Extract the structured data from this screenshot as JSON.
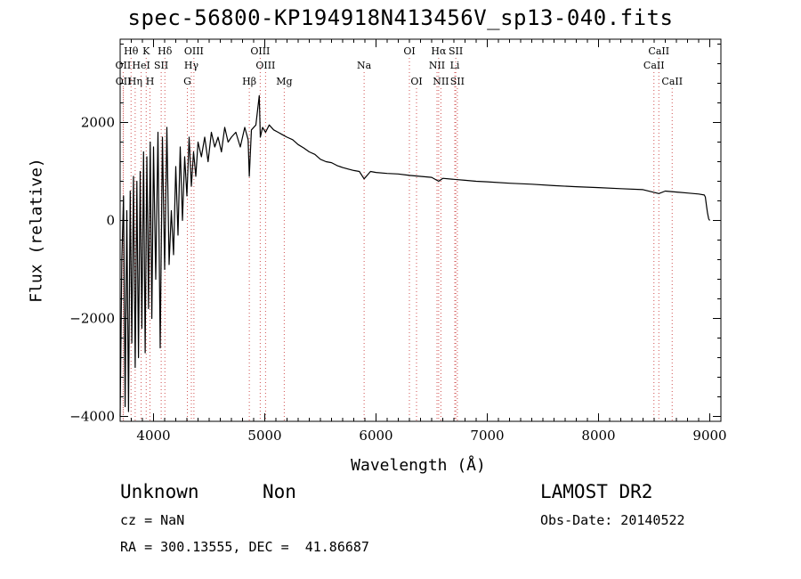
{
  "chart_data": {
    "type": "line",
    "title": "spec-56800-KP194918N413456V_sp13-040.fits",
    "xlabel": "Wavelength (Å)",
    "ylabel": "Flux (relative)",
    "xlim": [
      3700,
      9100
    ],
    "ylim": [
      -4100,
      3700
    ],
    "xticks": [
      4000,
      5000,
      6000,
      7000,
      8000,
      9000
    ],
    "yticks": [
      -4000,
      -2000,
      0,
      2000
    ],
    "grid": false,
    "spectrum": {
      "x": [
        3700,
        3715,
        3730,
        3745,
        3760,
        3775,
        3790,
        3805,
        3820,
        3835,
        3850,
        3865,
        3880,
        3895,
        3910,
        3925,
        3940,
        3955,
        3970,
        3985,
        4000,
        4020,
        4040,
        4060,
        4080,
        4100,
        4120,
        4140,
        4160,
        4180,
        4200,
        4220,
        4240,
        4260,
        4280,
        4300,
        4320,
        4340,
        4360,
        4380,
        4400,
        4430,
        4460,
        4490,
        4520,
        4550,
        4580,
        4610,
        4640,
        4670,
        4700,
        4740,
        4780,
        4820,
        4850,
        4861,
        4880,
        4920,
        4950,
        4960,
        4980,
        5007,
        5040,
        5080,
        5120,
        5160,
        5200,
        5250,
        5300,
        5350,
        5400,
        5450,
        5500,
        5550,
        5600,
        5650,
        5700,
        5750,
        5800,
        5850,
        5893,
        5950,
        6000,
        6100,
        6200,
        6300,
        6400,
        6500,
        6563,
        6600,
        6700,
        6800,
        6900,
        7000,
        7200,
        7400,
        7600,
        7800,
        8000,
        8200,
        8400,
        8542,
        8600,
        8800,
        8900,
        8950,
        8960,
        8970,
        8980,
        8990,
        9000
      ],
      "y": [
        -4000,
        -800,
        500,
        -3800,
        200,
        -3900,
        600,
        -2500,
        900,
        -3000,
        800,
        -2800,
        1000,
        -2200,
        1400,
        -2700,
        1300,
        -1800,
        1600,
        -2000,
        1500,
        -1200,
        1800,
        -2600,
        1700,
        -1000,
        1900,
        -900,
        200,
        -700,
        1100,
        -300,
        1500,
        0,
        1300,
        500,
        1700,
        700,
        1400,
        900,
        1600,
        1300,
        1700,
        1200,
        1800,
        1500,
        1700,
        1400,
        1900,
        1600,
        1700,
        1800,
        1500,
        1900,
        1650,
        900,
        1850,
        1950,
        2550,
        1700,
        1900,
        1800,
        1950,
        1850,
        1800,
        1750,
        1700,
        1650,
        1550,
        1480,
        1400,
        1350,
        1250,
        1200,
        1180,
        1120,
        1080,
        1050,
        1020,
        1000,
        850,
        1000,
        980,
        960,
        950,
        920,
        900,
        880,
        800,
        860,
        840,
        820,
        800,
        790,
        760,
        740,
        710,
        690,
        670,
        650,
        630,
        550,
        600,
        560,
        540,
        520,
        480,
        300,
        150,
        30,
        0
      ]
    },
    "lines": [
      {
        "label": "Hθ",
        "wl": 3798,
        "row": 1
      },
      {
        "label": "K",
        "wl": 3934,
        "row": 1
      },
      {
        "label": "Hδ",
        "wl": 4102,
        "row": 1
      },
      {
        "label": "OIII",
        "wl": 4363,
        "row": 1
      },
      {
        "label": "OIII",
        "wl": 4959,
        "row": 1
      },
      {
        "label": "OI",
        "wl": 6300,
        "row": 1
      },
      {
        "label": "Hα",
        "wl": 6563,
        "row": 1
      },
      {
        "label": "SII",
        "wl": 6717,
        "row": 1
      },
      {
        "label": "CaII",
        "wl": 8542,
        "row": 1
      },
      {
        "label": "OII",
        "wl": 3727,
        "row": 2
      },
      {
        "label": "HeI",
        "wl": 3889,
        "row": 2
      },
      {
        "label": "SII",
        "wl": 4069,
        "row": 2
      },
      {
        "label": "Hγ",
        "wl": 4340,
        "row": 2
      },
      {
        "label": "OIII",
        "wl": 5007,
        "row": 2
      },
      {
        "label": "Na",
        "wl": 5893,
        "row": 2
      },
      {
        "label": "NII",
        "wl": 6548,
        "row": 2
      },
      {
        "label": "Li",
        "wl": 6708,
        "row": 2
      },
      {
        "label": "CaII",
        "wl": 8498,
        "row": 2
      },
      {
        "label": "OII",
        "wl": 3729,
        "row": 3
      },
      {
        "label": "Hη",
        "wl": 3835,
        "row": 3
      },
      {
        "label": "H",
        "wl": 3968,
        "row": 3
      },
      {
        "label": "G",
        "wl": 4304,
        "row": 3
      },
      {
        "label": "Hβ",
        "wl": 4861,
        "row": 3
      },
      {
        "label": "Mg",
        "wl": 5175,
        "row": 3
      },
      {
        "label": "OI",
        "wl": 6364,
        "row": 3
      },
      {
        "label": "NII",
        "wl": 6583,
        "row": 3
      },
      {
        "label": "SII",
        "wl": 6731,
        "row": 3
      },
      {
        "label": "CaII",
        "wl": 8662,
        "row": 3
      }
    ]
  },
  "info": {
    "class": "Unknown",
    "subclass": "Non",
    "survey": "LAMOST DR2",
    "cz": "cz = NaN",
    "obsdate": "Obs-Date: 20140522",
    "radec": "RA = 300.13555, DEC =  41.86687"
  }
}
